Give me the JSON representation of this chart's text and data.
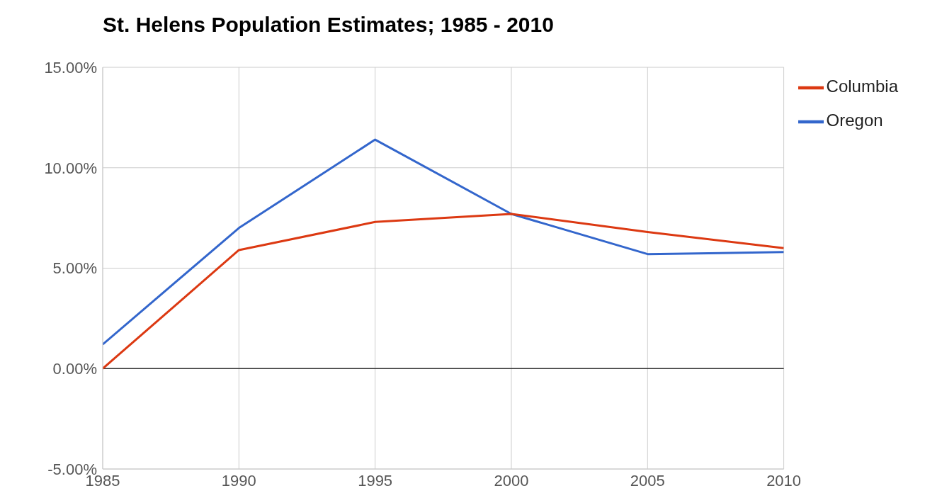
{
  "chart_data": {
    "type": "line",
    "title": "St. Helens Population Estimates; 1985 - 2010",
    "x": [
      1985,
      1990,
      1995,
      2000,
      2005,
      2010
    ],
    "series": [
      {
        "name": "Oregon",
        "color": "#3366cc",
        "values": [
          1.2,
          7.0,
          11.4,
          7.7,
          5.7,
          5.8
        ]
      },
      {
        "name": "Columbia",
        "color": "#dc3912",
        "values": [
          0.0,
          5.9,
          7.3,
          7.7,
          6.8,
          6.0
        ]
      }
    ],
    "xlim": [
      1985,
      2010
    ],
    "xticks": [
      1985,
      1990,
      1995,
      2000,
      2005,
      2010
    ],
    "ylim": [
      -5,
      15
    ],
    "yticks": [
      {
        "value": -5,
        "label": "-5.00%"
      },
      {
        "value": 0,
        "label": "0.00%"
      },
      {
        "value": 5,
        "label": "5.00%"
      },
      {
        "value": 10,
        "label": "10.00%"
      },
      {
        "value": 15,
        "label": "15.00%"
      }
    ],
    "ref_lines": [
      {
        "axis": "y",
        "value": 0,
        "color": "#333333"
      }
    ],
    "grid": true,
    "legend": "top right",
    "marker": "none",
    "line_style": "solid"
  }
}
